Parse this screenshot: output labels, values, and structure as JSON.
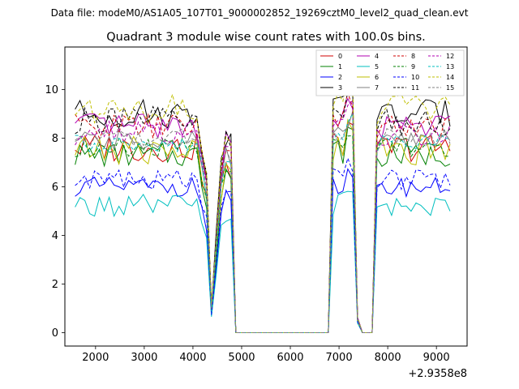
{
  "suptitle": "Data file: modeM0/AS1A05_107T01_9000002852_19269cztM0_level2_quad_clean.evt",
  "chart_data": {
    "type": "line",
    "title": "Quadrant 3 module wise count rates with 100.0s bins.",
    "xlabel": "",
    "ylabel": "",
    "x_offset_label": "+2.9358e8",
    "xlim": [
      1370,
      9630
    ],
    "ylim": [
      -0.55,
      11.75
    ],
    "xticks": [
      2000,
      3000,
      4000,
      5000,
      6000,
      7000,
      8000,
      9000
    ],
    "xtick_labels": [
      "2000",
      "3000",
      "4000",
      "5000",
      "6000",
      "7000",
      "8000",
      "9000"
    ],
    "yticks": [
      0,
      2,
      4,
      6,
      8,
      10
    ],
    "ytick_labels": [
      "0",
      "2",
      "4",
      "6",
      "8",
      "10"
    ],
    "legend_position": "top-right",
    "x": [
      1580,
      1680,
      1780,
      1880,
      1980,
      2080,
      2180,
      2280,
      2380,
      2480,
      2580,
      2680,
      2780,
      2880,
      2980,
      3080,
      3180,
      3280,
      3380,
      3480,
      3580,
      3680,
      3780,
      3880,
      3980,
      4080,
      4180,
      4280,
      4380,
      4480,
      4580,
      4680,
      4780,
      4880,
      4980,
      5080,
      5180,
      5280,
      5380,
      5480,
      5580,
      5680,
      5780,
      5880,
      5980,
      6080,
      6180,
      6280,
      6380,
      6480,
      6580,
      6680,
      6780,
      6880,
      6980,
      7080,
      7180,
      7280,
      7380,
      7480,
      7580,
      7680,
      7780,
      7880,
      7980,
      8080,
      8180,
      8280,
      8380,
      8480,
      8580,
      8680,
      8780,
      8880,
      8980,
      9080,
      9180,
      9280
    ],
    "series": [
      {
        "name": "0",
        "color": "#d00000",
        "dash": false,
        "level": 7.6,
        "amp": 0.6,
        "seed": 3
      },
      {
        "name": "1",
        "color": "#008000",
        "dash": false,
        "level": 7.3,
        "amp": 0.5,
        "seed": 7
      },
      {
        "name": "2",
        "color": "#0000ff",
        "dash": false,
        "level": 6.0,
        "amp": 0.4,
        "seed": 11
      },
      {
        "name": "3",
        "color": "#000000",
        "dash": false,
        "level": 9.0,
        "amp": 0.6,
        "seed": 13
      },
      {
        "name": "4",
        "color": "#b000b0",
        "dash": false,
        "level": 8.5,
        "amp": 0.5,
        "seed": 17
      },
      {
        "name": "5",
        "color": "#00bfbf",
        "dash": false,
        "level": 5.2,
        "amp": 0.5,
        "seed": 19
      },
      {
        "name": "6",
        "color": "#bfbf00",
        "dash": false,
        "level": 7.5,
        "amp": 0.6,
        "seed": 23
      },
      {
        "name": "7",
        "color": "#808080",
        "dash": false,
        "level": 7.9,
        "amp": 0.4,
        "seed": 29
      },
      {
        "name": "8",
        "color": "#d00000",
        "dash": true,
        "level": 8.5,
        "amp": 0.5,
        "seed": 31
      },
      {
        "name": "9",
        "color": "#008000",
        "dash": true,
        "level": 7.6,
        "amp": 0.4,
        "seed": 37
      },
      {
        "name": "10",
        "color": "#0000ff",
        "dash": true,
        "level": 6.3,
        "amp": 0.4,
        "seed": 41
      },
      {
        "name": "11",
        "color": "#000000",
        "dash": true,
        "level": 8.7,
        "amp": 0.6,
        "seed": 43
      },
      {
        "name": "12",
        "color": "#b000b0",
        "dash": true,
        "level": 8.2,
        "amp": 0.5,
        "seed": 47
      },
      {
        "name": "13",
        "color": "#00bfbf",
        "dash": true,
        "level": 7.8,
        "amp": 0.4,
        "seed": 53
      },
      {
        "name": "14",
        "color": "#bfbf00",
        "dash": true,
        "level": 9.2,
        "amp": 0.6,
        "seed": 59
      },
      {
        "name": "15",
        "color": "#808080",
        "dash": true,
        "level": 8.0,
        "amp": 0.4,
        "seed": 61
      }
    ]
  }
}
